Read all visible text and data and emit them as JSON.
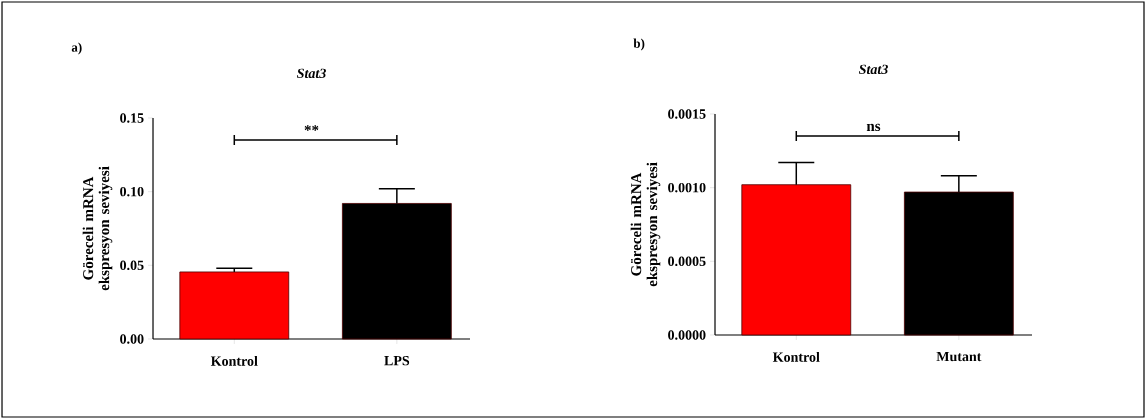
{
  "chart_data": [
    {
      "type": "bar",
      "title": "*Stat3*",
      "ylabel": "Göreceli mRNA ekspresyon seviyesi",
      "categories": [
        "Kontrol",
        "LPS"
      ],
      "values": [
        0.0455,
        0.092
      ],
      "colors": [
        "#ff0000",
        "#000000"
      ],
      "errors": [
        [
          0.0455,
          0.048
        ],
        [
          0.092,
          0.102
        ]
      ],
      "ylim": [
        0,
        0.15
      ],
      "yticks": [
        {
          "value": 0,
          "label": "0.00"
        },
        0.05,
        {
          "value": 0.1,
          "label": "0.10"
        },
        0.15
      ],
      "annotations": [
        "a)",
        "**"
      ],
      "grid": false
    },
    {
      "type": "bar",
      "title": "*Stat3*",
      "ylabel": "Göreceli mRNA ekspresyon seviyesi",
      "categories": [
        "Kontrol",
        "Mutant"
      ],
      "values": [
        0.00102,
        0.00097
      ],
      "colors": [
        "#ff0000",
        "#000000"
      ],
      "errors": [
        [
          0.00102,
          0.00117
        ],
        [
          0.00097,
          0.00108
        ]
      ],
      "ylim": [
        0,
        0.0015
      ],
      "yticks": [
        {
          "value": 0,
          "label": "0.0000"
        },
        0.0005,
        {
          "value": 0.001,
          "label": "0.0010"
        },
        0.0015
      ],
      "annotations": [
        "b)",
        "ns"
      ],
      "grid": false
    }
  ]
}
